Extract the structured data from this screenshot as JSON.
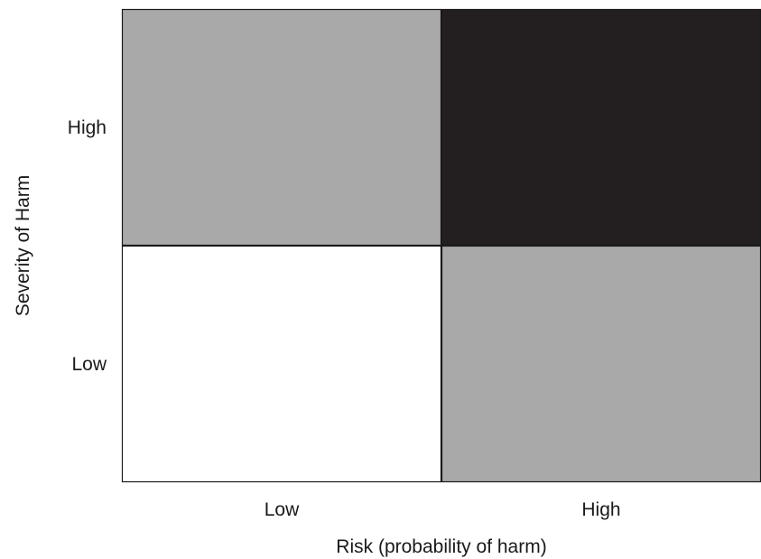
{
  "chart_data": {
    "type": "heatmap",
    "xlabel": "Risk (probability of harm)",
    "ylabel": "Severity of Harm",
    "x_categories": [
      "Low",
      "High"
    ],
    "y_categories": [
      "Low",
      "High"
    ],
    "cells": [
      {
        "x": "Low",
        "y": "High",
        "color": "#a9a9a9"
      },
      {
        "x": "High",
        "y": "High",
        "color": "#231f20"
      },
      {
        "x": "Low",
        "y": "Low",
        "color": "#ffffff"
      },
      {
        "x": "High",
        "y": "Low",
        "color": "#a9a9a9"
      }
    ],
    "grid": true
  }
}
